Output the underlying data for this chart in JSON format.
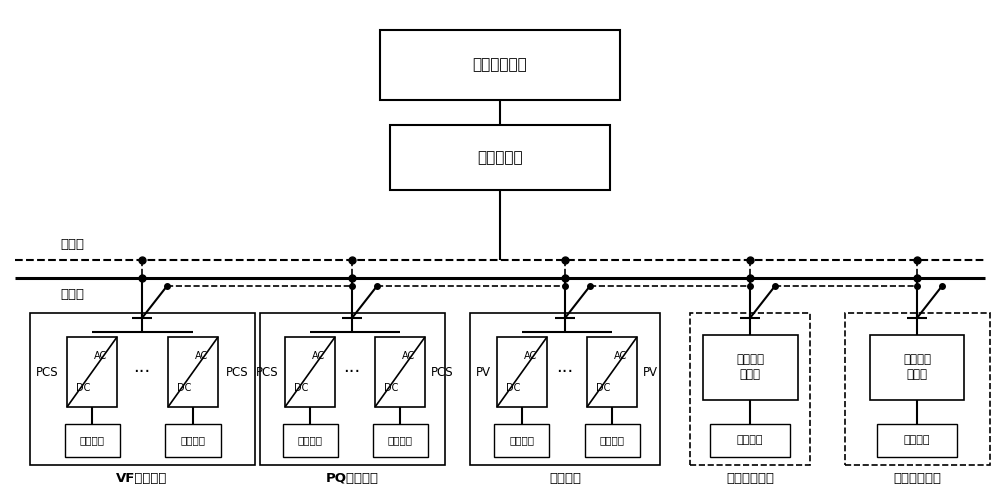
{
  "bg_color": "#ffffff",
  "top_box_label": "能量管理系统",
  "mid_box_label": "中央控制器",
  "signal_label": "信号流",
  "power_label": "功率流",
  "vf_label": "VF储能系统",
  "pq_label": "PQ储能系统",
  "pv_label": "光伏系统",
  "al_label": "可调负荷系统",
  "gl_label": "一般负荷系统",
  "bat1": "储能电池",
  "bat2": "储能电池",
  "pv_bat": "光伏电池",
  "al_ctrl": "可调负荷\n控制器",
  "al_sub": "可调负荷",
  "gl_ctrl": "一般负荷\n控制器",
  "gl_sub": "一般负荷"
}
